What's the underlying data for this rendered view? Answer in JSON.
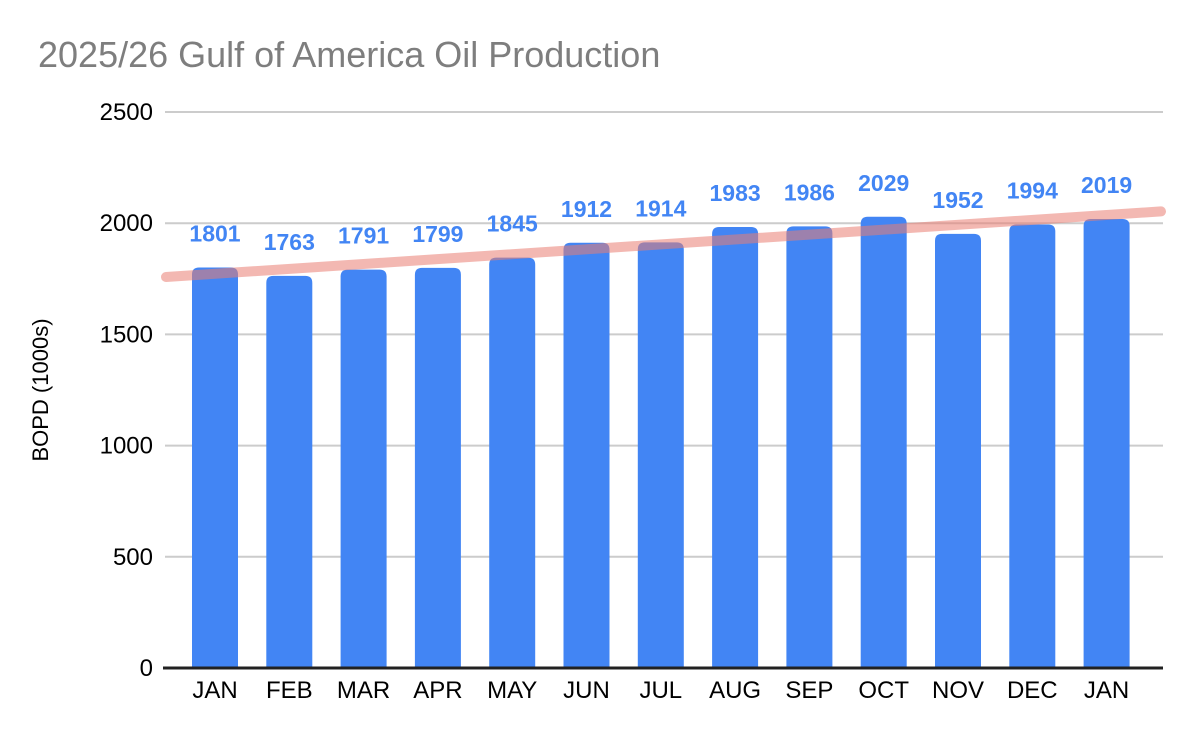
{
  "chart_data": {
    "type": "bar",
    "title": "2025/26 Gulf of America Oil Production",
    "categories": [
      "JAN",
      "FEB",
      "MAR",
      "APR",
      "MAY",
      "JUN",
      "JUL",
      "AUG",
      "SEP",
      "OCT",
      "NOV",
      "DEC",
      "JAN"
    ],
    "values": [
      1801,
      1763,
      1791,
      1799,
      1845,
      1912,
      1914,
      1983,
      1986,
      2029,
      1952,
      1994,
      2019
    ],
    "xlabel": "",
    "ylabel": "BOPD (1000s)",
    "ylim": [
      0,
      2500
    ],
    "yticks": [
      0,
      500,
      1000,
      1500,
      2000,
      2500
    ],
    "grid": true,
    "legend": "none",
    "bar_color": "#4285F4",
    "value_label_color": "#4285F4",
    "trendline": {
      "start_value": 1758,
      "end_value": 2053,
      "color": "#EA7E73",
      "opacity": 0.55
    }
  },
  "colors": {
    "background": "#ffffff",
    "title_text": "#7e7e7e",
    "axis_text": "#000000",
    "gridline": "#cccccc",
    "baseline": "#212121"
  }
}
